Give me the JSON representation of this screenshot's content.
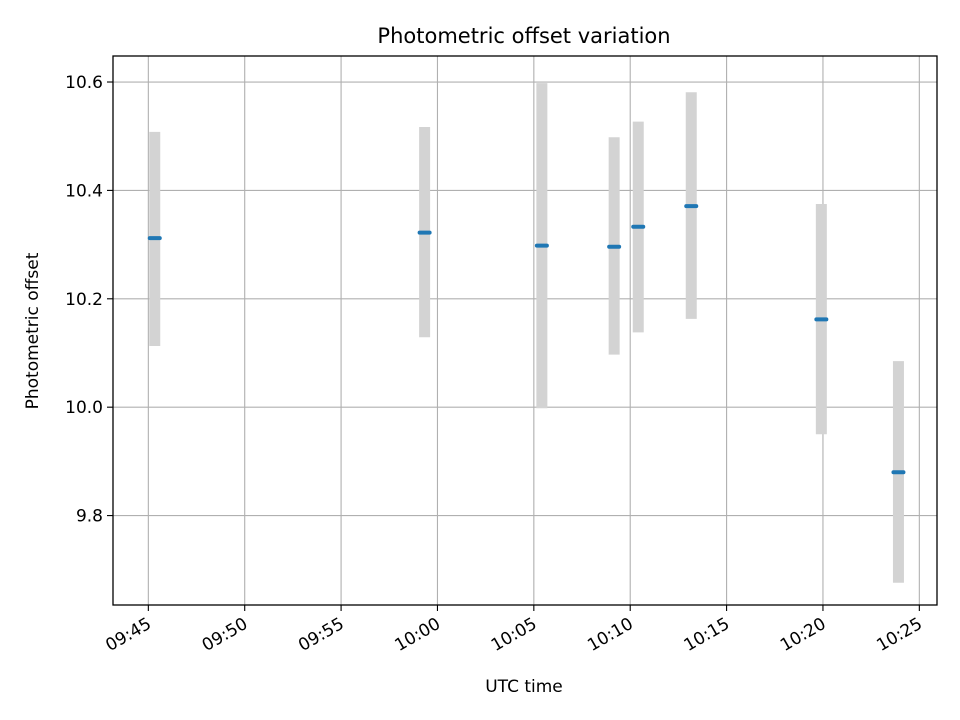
{
  "chart_data": {
    "type": "scatter",
    "title": "Photometric offset variation",
    "xlabel": "UTC time",
    "ylabel": "Photometric offset",
    "x_ticks": [
      "09:45",
      "09:50",
      "09:55",
      "10:00",
      "10:05",
      "10:10",
      "10:15",
      "10:20",
      "10:25"
    ],
    "y_ticks": [
      "9.8",
      "10.0",
      "10.2",
      "10.4",
      "10.6"
    ],
    "xlim": [
      "09:43:10",
      "10:25:55"
    ],
    "ylim": [
      9.635,
      10.648
    ],
    "grid": true,
    "points": [
      {
        "x": "09:45:20",
        "y": 10.312,
        "err_low": 10.113,
        "err_high": 10.508
      },
      {
        "x": "09:59:20",
        "y": 10.322,
        "err_low": 10.129,
        "err_high": 10.517
      },
      {
        "x": "10:05:25",
        "y": 10.298,
        "err_low": 9.998,
        "err_high": 10.598
      },
      {
        "x": "10:09:10",
        "y": 10.296,
        "err_low": 10.097,
        "err_high": 10.498
      },
      {
        "x": "10:10:25",
        "y": 10.333,
        "err_low": 10.138,
        "err_high": 10.527
      },
      {
        "x": "10:13:10",
        "y": 10.371,
        "err_low": 10.163,
        "err_high": 10.581
      },
      {
        "x": "10:19:55",
        "y": 10.162,
        "err_low": 9.95,
        "err_high": 10.375
      },
      {
        "x": "10:23:55",
        "y": 9.88,
        "err_low": 9.676,
        "err_high": 10.085
      }
    ],
    "colors": {
      "marker": "#1f77b4",
      "errorbar": "#d3d3d3",
      "grid": "#b0b0b0",
      "frame": "#000000"
    }
  }
}
